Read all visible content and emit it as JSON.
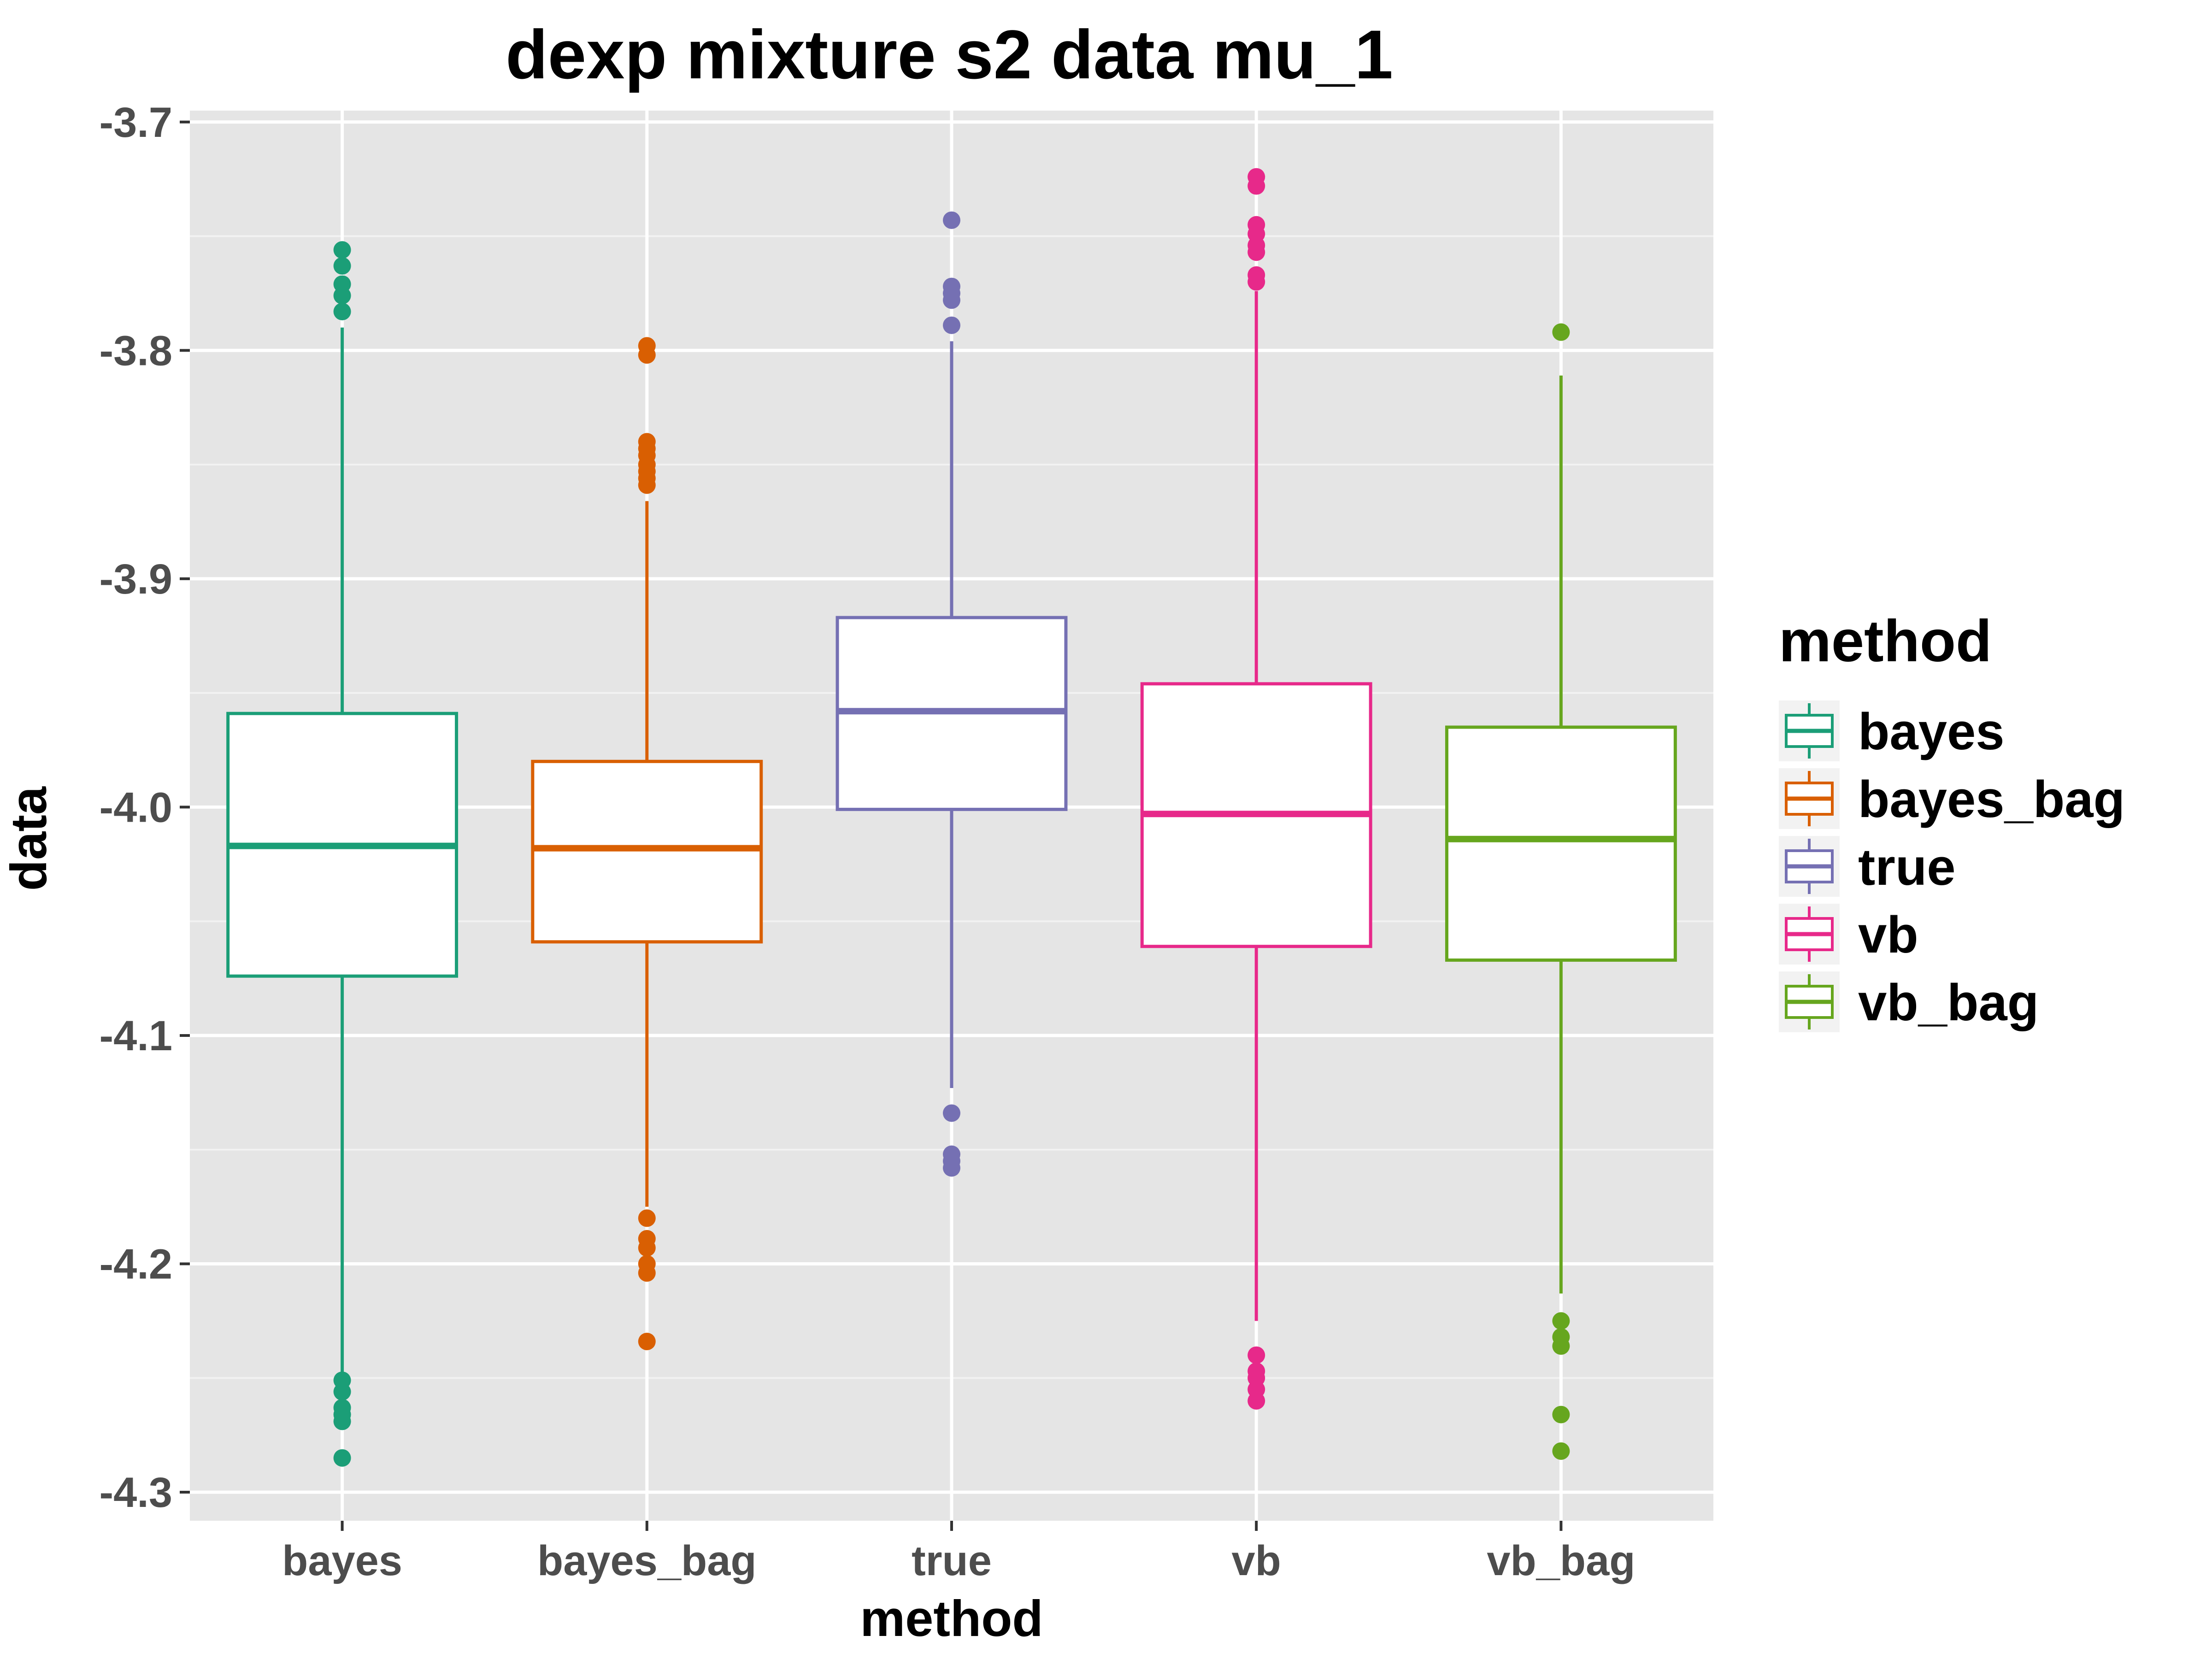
{
  "chart_data": {
    "type": "boxplot",
    "title": "dexp mixture s2 data mu_1",
    "xlabel": "method",
    "ylabel": "data",
    "ylim": [
      -4.3125,
      -3.695
    ],
    "yticks": [
      -3.7,
      -3.8,
      -3.9,
      -4.0,
      -4.1,
      -4.2,
      -4.3
    ],
    "ytick_labels": [
      "-3.7",
      "-3.8",
      "-3.9",
      "-4.0",
      "-4.1",
      "-4.2",
      "-4.3"
    ],
    "categories": [
      "bayes",
      "bayes_bag",
      "true",
      "vb",
      "vb_bag"
    ],
    "legend": {
      "title": "method",
      "position": "right"
    },
    "series": [
      {
        "name": "bayes",
        "color": "#1b9e77",
        "q1": -4.074,
        "median": -4.017,
        "q3": -3.959,
        "whisker_low": -4.249,
        "whisker_high": -3.79,
        "outliers": [
          -3.756,
          -3.763,
          -3.771,
          -3.776,
          -3.783,
          -4.251,
          -4.256,
          -4.263,
          -4.266,
          -4.269,
          -4.285
        ]
      },
      {
        "name": "bayes_bag",
        "color": "#d95f02",
        "q1": -4.059,
        "median": -4.018,
        "q3": -3.98,
        "whisker_low": -4.175,
        "whisker_high": -3.866,
        "outliers": [
          -3.798,
          -3.802,
          -3.84,
          -3.843,
          -3.846,
          -3.85,
          -3.853,
          -3.856,
          -3.859,
          -4.18,
          -4.189,
          -4.193,
          -4.2,
          -4.204,
          -4.234
        ]
      },
      {
        "name": "true",
        "color": "#7570b3",
        "q1": -4.001,
        "median": -3.958,
        "q3": -3.917,
        "whisker_low": -4.123,
        "whisker_high": -3.796,
        "outliers": [
          -3.743,
          -3.772,
          -3.775,
          -3.778,
          -3.789,
          -4.134,
          -4.152,
          -4.155,
          -4.158
        ]
      },
      {
        "name": "vb",
        "color": "#e7298a",
        "q1": -4.061,
        "median": -4.003,
        "q3": -3.946,
        "whisker_low": -4.225,
        "whisker_high": -3.774,
        "outliers": [
          -3.724,
          -3.728,
          -3.745,
          -3.749,
          -3.754,
          -3.757,
          -3.767,
          -3.77,
          -4.24,
          -4.247,
          -4.25,
          -4.255,
          -4.26
        ]
      },
      {
        "name": "vb_bag",
        "color": "#66a61e",
        "q1": -4.067,
        "median": -4.014,
        "q3": -3.965,
        "whisker_low": -4.213,
        "whisker_high": -3.811,
        "outliers": [
          -3.792,
          -4.225,
          -4.232,
          -4.236,
          -4.266,
          -4.282
        ]
      }
    ]
  }
}
